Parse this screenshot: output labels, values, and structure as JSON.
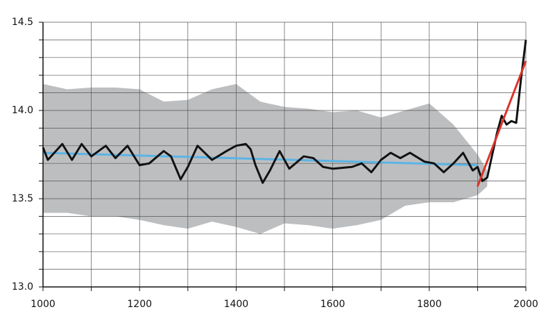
{
  "chart_data": {
    "type": "line",
    "xlim": [
      1000,
      2000
    ],
    "xticks": [
      1000,
      1200,
      1400,
      1600,
      1800,
      2000
    ],
    "xminorticks": [
      1100,
      1300,
      1500,
      1700,
      1900
    ],
    "ylim": [
      13,
      14.5
    ],
    "yticks": [
      {
        "value": 13,
        "label": "13.0"
      },
      13.5,
      {
        "value": 14,
        "label": "14.0"
      },
      14.5
    ],
    "yminorticks": [
      13.1,
      13.2,
      13.3,
      13.4,
      13.6,
      13.7,
      13.8,
      13.9,
      14.1,
      14.2,
      14.3,
      14.4
    ],
    "grid": true,
    "band": {
      "color": "#bdbec0",
      "x": [
        1000,
        1050,
        1100,
        1150,
        1200,
        1250,
        1300,
        1350,
        1400,
        1450,
        1500,
        1550,
        1600,
        1650,
        1700,
        1750,
        1800,
        1850,
        1900,
        1920
      ],
      "upper": [
        14.15,
        14.12,
        14.13,
        14.13,
        14.12,
        14.05,
        14.06,
        14.12,
        14.15,
        14.05,
        14.02,
        14.01,
        13.99,
        14.0,
        13.96,
        14.0,
        14.04,
        13.92,
        13.75,
        13.66
      ],
      "lower": [
        13.42,
        13.42,
        13.4,
        13.4,
        13.38,
        13.35,
        13.33,
        13.37,
        13.34,
        13.3,
        13.36,
        13.35,
        13.33,
        13.35,
        13.38,
        13.46,
        13.48,
        13.48,
        13.52,
        13.57
      ]
    },
    "series": [
      {
        "color": "#5ab4e5",
        "x": [
          1000,
          1900
        ],
        "values": [
          13.76,
          13.69
        ]
      },
      {
        "color": "#111111",
        "x": [
          1000,
          1010,
          1040,
          1060,
          1080,
          1100,
          1130,
          1150,
          1175,
          1200,
          1220,
          1250,
          1265,
          1285,
          1300,
          1320,
          1350,
          1380,
          1400,
          1420,
          1430,
          1440,
          1455,
          1470,
          1490,
          1510,
          1540,
          1560,
          1580,
          1600,
          1640,
          1660,
          1680,
          1700,
          1720,
          1740,
          1760,
          1790,
          1810,
          1830,
          1850,
          1870,
          1890,
          1900,
          1910,
          1920,
          1940,
          1950,
          1960,
          1970,
          1980,
          1990,
          2000
        ],
        "values": [
          13.79,
          13.72,
          13.81,
          13.72,
          13.81,
          13.74,
          13.8,
          13.73,
          13.8,
          13.69,
          13.7,
          13.77,
          13.74,
          13.61,
          13.68,
          13.8,
          13.72,
          13.77,
          13.8,
          13.81,
          13.78,
          13.69,
          13.59,
          13.66,
          13.77,
          13.67,
          13.74,
          13.73,
          13.68,
          13.67,
          13.68,
          13.7,
          13.65,
          13.72,
          13.76,
          13.73,
          13.76,
          13.71,
          13.7,
          13.65,
          13.7,
          13.76,
          13.66,
          13.68,
          13.6,
          13.62,
          13.87,
          13.97,
          13.92,
          13.94,
          13.93,
          14.18,
          14.4
        ]
      },
      {
        "color": "#d9342b",
        "x": [
          1900,
          2000
        ],
        "values": [
          13.57,
          14.28
        ]
      }
    ]
  }
}
